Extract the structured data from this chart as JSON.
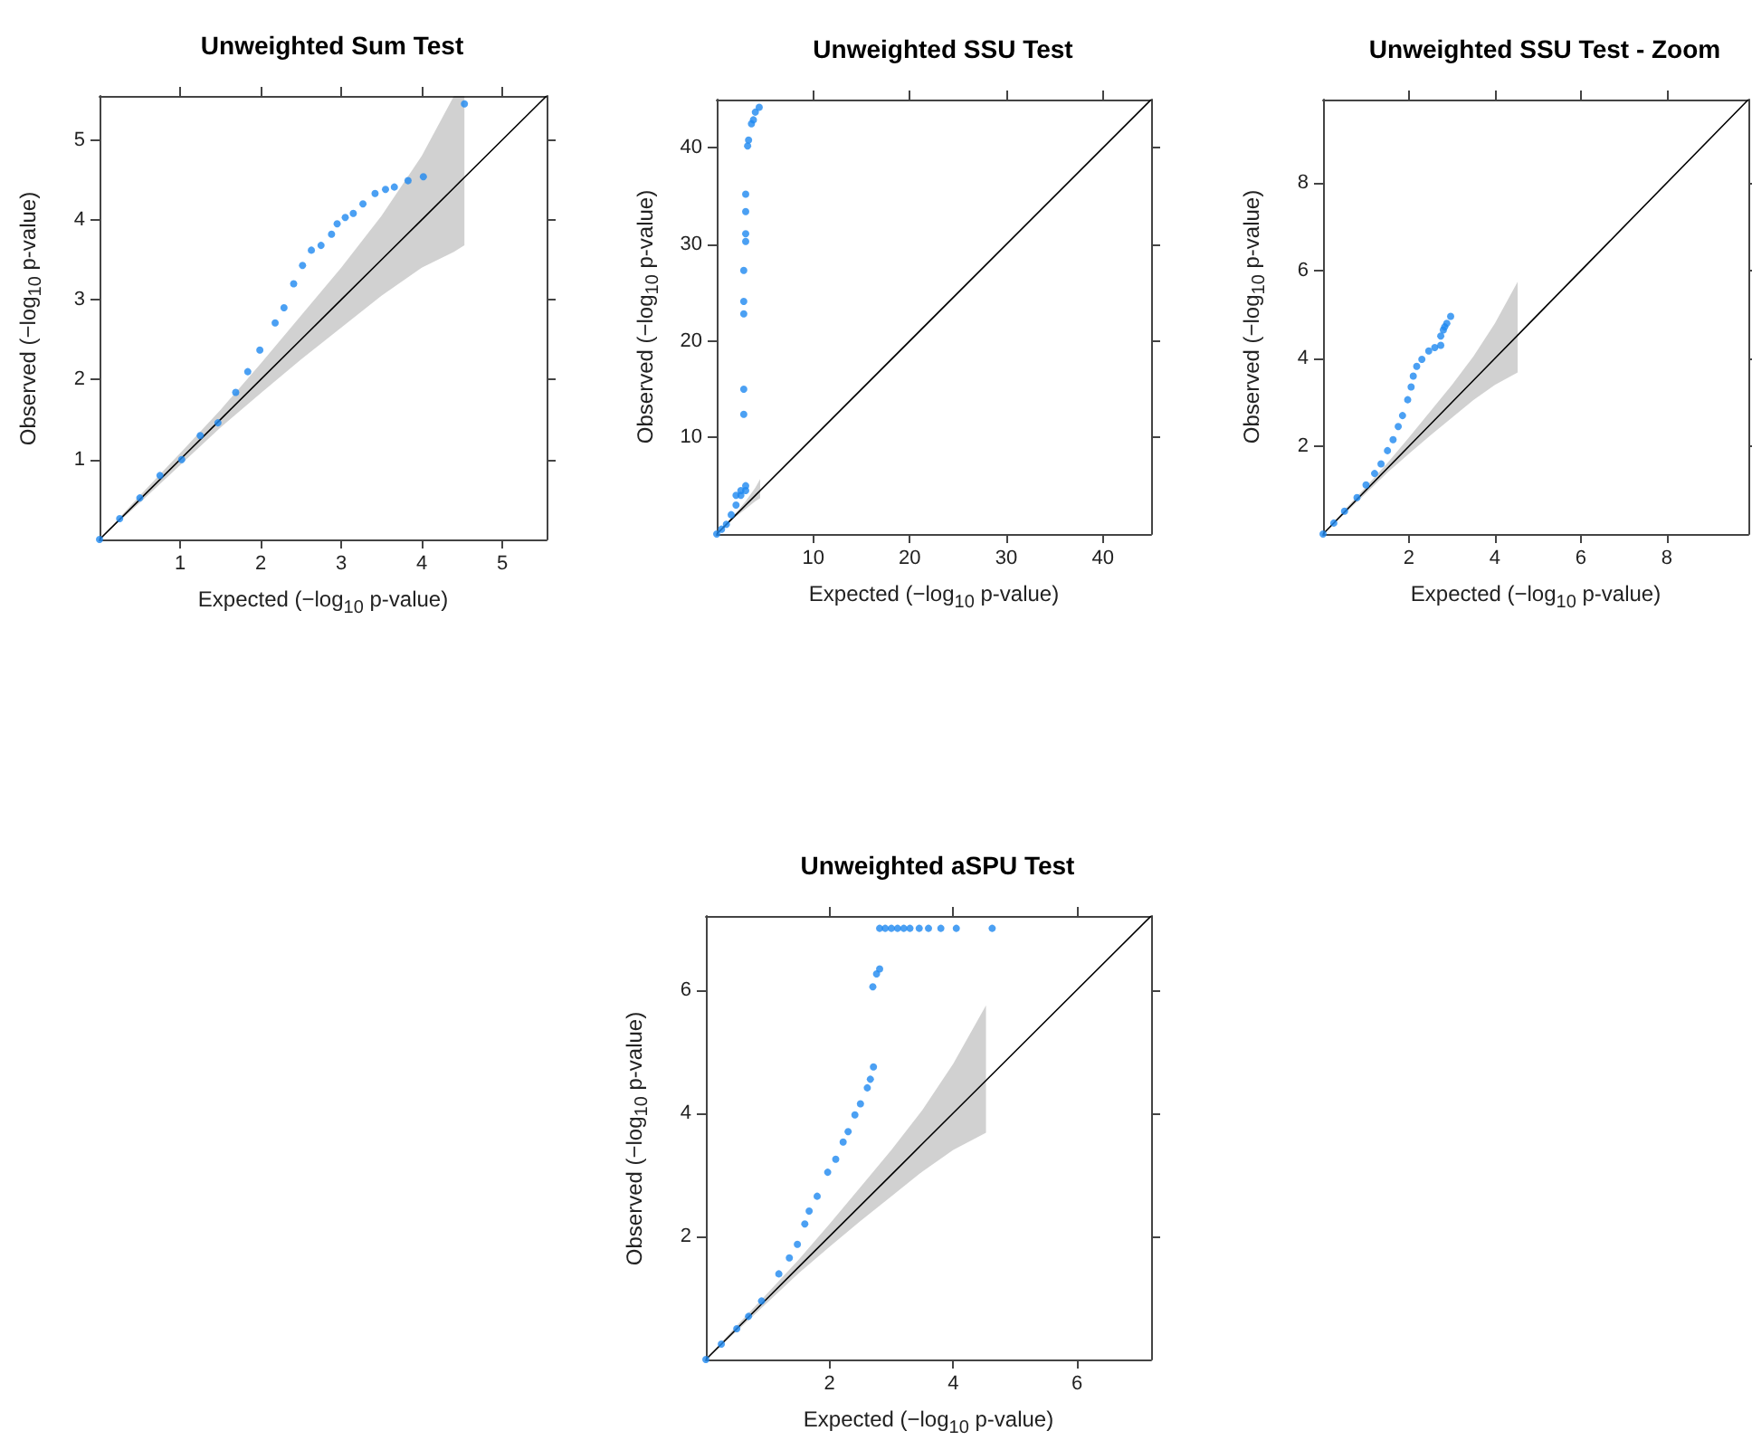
{
  "chart_data": [
    {
      "type": "scatter",
      "title": "Unweighted Sum Test",
      "xlabel": "Expected (−log$_{10}$ p-value)",
      "ylabel": "Observed (−log$_{10}$ p-value)",
      "xlim": [
        0,
        5.55
      ],
      "ylim": [
        0,
        5.55
      ],
      "xticks": [
        1,
        2,
        3,
        4,
        5
      ],
      "yticks": [
        1,
        2,
        3,
        4,
        5
      ],
      "grid": false,
      "series": [
        {
          "type": "line",
          "color": "#000000",
          "marker": "none",
          "x": [
            0,
            0.5,
            1,
            1.5,
            2,
            2.5,
            3,
            3.5,
            4,
            4.4,
            4.53,
            5.55
          ],
          "values": [
            0,
            0.5,
            1,
            1.5,
            2,
            2.5,
            3,
            3.5,
            4,
            4.4,
            4.53,
            5.55
          ],
          "lower": [
            0,
            0.46,
            0.93,
            1.4,
            1.83,
            2.25,
            2.65,
            3.05,
            3.4,
            3.6,
            3.68,
            null
          ],
          "upper": [
            0,
            0.55,
            1.08,
            1.62,
            2.2,
            2.8,
            3.4,
            4.05,
            4.8,
            5.55,
            5.55,
            null
          ]
        },
        {
          "color": "#1e88f0",
          "marker": "circle",
          "x": [
            0,
            0.25,
            0.5,
            0.75,
            1.02,
            1.25,
            1.47,
            1.69,
            1.84,
            1.99,
            2.18,
            2.29,
            2.41,
            2.52,
            2.63,
            2.75,
            2.88,
            2.95,
            3.05,
            3.15,
            3.27,
            3.42,
            3.55,
            3.66,
            3.83,
            4.02,
            4.53
          ],
          "values": [
            0,
            0.26,
            0.52,
            0.8,
            1.0,
            1.3,
            1.46,
            1.84,
            2.1,
            2.37,
            2.71,
            2.9,
            3.2,
            3.43,
            3.62,
            3.68,
            3.82,
            3.95,
            4.03,
            4.08,
            4.2,
            4.33,
            4.38,
            4.41,
            4.49,
            4.54,
            5.45
          ]
        }
      ]
    },
    {
      "type": "scatter",
      "title": "Unweighted SSU Test",
      "xlabel": "Expected (−log$_{10}$ p-value)",
      "ylabel": "Observed (−log$_{10}$ p-value)",
      "xlim": [
        0,
        45
      ],
      "ylim": [
        0,
        45
      ],
      "xticks": [
        10,
        20,
        30,
        40
      ],
      "yticks": [
        10,
        20,
        30,
        40
      ],
      "grid": false,
      "series": [
        {
          "type": "line",
          "color": "#000000",
          "marker": "none",
          "x": [
            0,
            1,
            2,
            3,
            4,
            4.5,
            45
          ],
          "values": [
            0,
            1,
            2,
            3,
            4,
            4.5,
            45
          ],
          "lower": [
            0,
            0.9,
            1.8,
            2.6,
            3.4,
            3.7,
            null
          ],
          "upper": [
            0,
            1.1,
            2.2,
            3.4,
            4.8,
            5.7,
            null
          ]
        },
        {
          "color": "#1e88f0",
          "marker": "circle",
          "x": [
            0,
            0.5,
            1,
            1.5,
            2,
            2,
            2.5,
            2.5,
            3,
            3,
            2.8,
            2.8,
            2.8,
            2.8,
            2.8,
            3,
            3,
            3,
            3,
            3.2,
            3.3,
            3.6,
            3.8,
            4,
            4.4
          ],
          "values": [
            0,
            0.5,
            1,
            2,
            3,
            4,
            4,
            4.5,
            4.5,
            5,
            12.4,
            15,
            22.8,
            24.1,
            27.3,
            30.3,
            31.1,
            33.4,
            35.2,
            40.2,
            40.8,
            42.5,
            42.9,
            43.7,
            44.2
          ]
        }
      ]
    },
    {
      "type": "scatter",
      "title": "Unweighted SSU Test - Zoom",
      "xlabel": "Expected (−log$_{10}$ p-value)",
      "ylabel": "Observed (−log$_{10}$ p-value)",
      "xlim": [
        0,
        9.9
      ],
      "ylim": [
        0,
        9.9
      ],
      "xticks": [
        2,
        4,
        6,
        8
      ],
      "yticks": [
        2,
        4,
        6,
        8
      ],
      "grid": false,
      "series": [
        {
          "type": "line",
          "color": "#000000",
          "marker": "none",
          "x": [
            0,
            0.5,
            1,
            1.5,
            2,
            2.5,
            3,
            3.5,
            4,
            4.53,
            9.9
          ],
          "values": [
            0,
            0.5,
            1,
            1.5,
            2,
            2.5,
            3,
            3.5,
            4,
            4.53,
            9.9
          ],
          "lower": [
            0,
            0.46,
            0.93,
            1.4,
            1.83,
            2.25,
            2.65,
            3.05,
            3.4,
            3.68,
            null
          ],
          "upper": [
            0,
            0.55,
            1.08,
            1.62,
            2.2,
            2.8,
            3.4,
            4.05,
            4.8,
            5.75,
            null
          ]
        },
        {
          "color": "#1e88f0",
          "marker": "circle",
          "x": [
            0,
            0.25,
            0.5,
            0.79,
            1.0,
            1.2,
            1.35,
            1.5,
            1.63,
            1.75,
            1.85,
            1.97,
            2.05,
            2.1,
            2.18,
            2.3,
            2.46,
            2.6,
            2.74,
            2.74,
            2.8,
            2.83,
            2.88,
            2.97
          ],
          "values": [
            0,
            0.25,
            0.52,
            0.83,
            1.12,
            1.38,
            1.6,
            1.9,
            2.15,
            2.45,
            2.7,
            3.06,
            3.35,
            3.6,
            3.82,
            3.98,
            4.17,
            4.25,
            4.3,
            4.51,
            4.65,
            4.72,
            4.8,
            4.96
          ]
        }
      ]
    },
    {
      "type": "scatter",
      "title": "Unweighted aSPU Test",
      "xlabel": "Expected (−log$_{10}$ p-value)",
      "ylabel": "Observed (−log$_{10}$ p-value)",
      "xlim": [
        0,
        7.2
      ],
      "ylim": [
        0,
        7.2
      ],
      "xticks": [
        2,
        4,
        6
      ],
      "yticks": [
        2,
        4,
        6
      ],
      "grid": false,
      "series": [
        {
          "type": "line",
          "color": "#000000",
          "marker": "none",
          "x": [
            0,
            0.5,
            1,
            1.5,
            2,
            2.5,
            3,
            3.5,
            4,
            4.53,
            7.2
          ],
          "values": [
            0,
            0.5,
            1,
            1.5,
            2,
            2.5,
            3,
            3.5,
            4,
            4.53,
            7.2
          ],
          "lower": [
            0,
            0.46,
            0.93,
            1.4,
            1.83,
            2.25,
            2.65,
            3.05,
            3.4,
            3.68,
            null
          ],
          "upper": [
            0,
            0.55,
            1.08,
            1.62,
            2.2,
            2.8,
            3.4,
            4.05,
            4.8,
            5.75,
            null
          ]
        },
        {
          "color": "#1e88f0",
          "marker": "circle",
          "x": [
            0,
            0.25,
            0.5,
            0.69,
            0.9,
            1.18,
            1.35,
            1.48,
            1.6,
            1.67,
            1.8,
            1.97,
            2.1,
            2.22,
            2.3,
            2.41,
            2.5,
            2.61,
            2.66,
            2.71,
            2.7,
            2.76,
            2.81,
            2.81,
            2.9,
            3.0,
            3.1,
            3.2,
            3.3,
            3.45,
            3.6,
            3.8,
            4.05,
            4.63
          ],
          "values": [
            0,
            0.25,
            0.5,
            0.7,
            0.95,
            1.39,
            1.65,
            1.87,
            2.2,
            2.41,
            2.65,
            3.04,
            3.25,
            3.53,
            3.7,
            3.97,
            4.15,
            4.41,
            4.55,
            4.75,
            6.05,
            6.26,
            6.34,
            7.0,
            7.0,
            7.0,
            7.0,
            7.0,
            7.0,
            7.0,
            7.0,
            7.0,
            7.0,
            7.0
          ]
        }
      ]
    }
  ]
}
